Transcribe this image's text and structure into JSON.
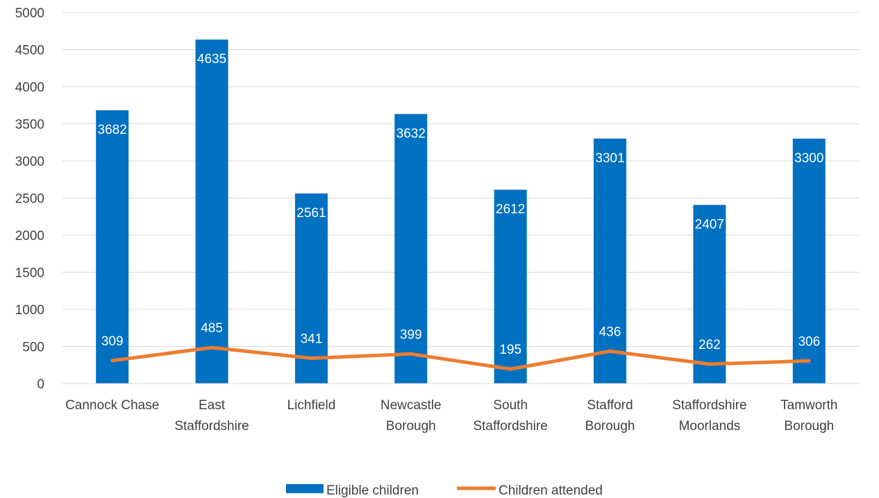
{
  "chart_data": {
    "type": "bar",
    "categories": [
      [
        "Cannock Chase"
      ],
      [
        "East",
        "Staffordshire"
      ],
      [
        "Lichfield"
      ],
      [
        "Newcastle",
        "Borough"
      ],
      [
        "South",
        "Staffordshire"
      ],
      [
        "Stafford",
        "Borough"
      ],
      [
        "Staffordshire",
        "Moorlands"
      ],
      [
        "Tamworth",
        "Borough"
      ]
    ],
    "series": [
      {
        "name": "Eligible children",
        "type": "bar",
        "color": "#0070c0",
        "values": [
          3682,
          4635,
          2561,
          3632,
          2612,
          3301,
          2407,
          3300
        ]
      },
      {
        "name": "Children attended",
        "type": "line",
        "color": "#ed7d31",
        "values": [
          309,
          485,
          341,
          399,
          195,
          436,
          262,
          306
        ]
      }
    ],
    "ylim": [
      0,
      5000
    ],
    "yticks": [
      0,
      500,
      1000,
      1500,
      2000,
      2500,
      3000,
      3500,
      4000,
      4500,
      5000
    ],
    "grid": true,
    "legend": "bottom-center"
  }
}
